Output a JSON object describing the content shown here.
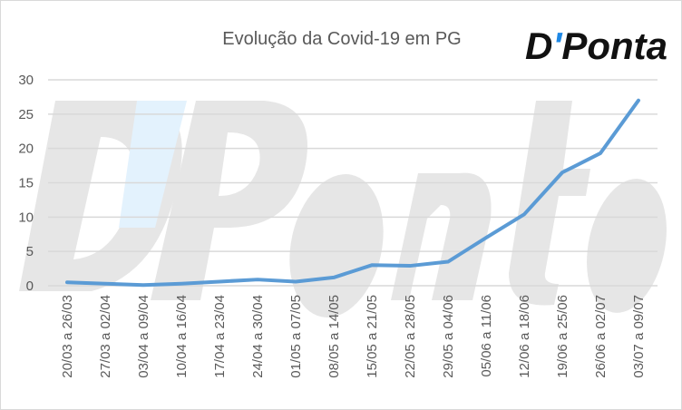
{
  "chart_data": {
    "type": "line",
    "title": "Evolução da Covid-19 em PG",
    "xlabel": "",
    "ylabel": "",
    "categories": [
      "20/03 a 26/03",
      "27/03 a 02/04",
      "03/04 a 09/04",
      "10/04 a 16/04",
      "17/04 a 23/04",
      "24/04 a 30/04",
      "01/05 a 07/05",
      "08/05 a 14/05",
      "15/05 a 21/05",
      "22/05 a 28/05",
      "29/05 a 04/06",
      "05/06 a 11/06",
      "12/06 a 18/06",
      "19/06 a 25/06",
      "26/06 a 02/07",
      "03/07 a 09/07"
    ],
    "series": [
      {
        "values": [
          0.5,
          0.3,
          0.1,
          0.3,
          0.6,
          0.9,
          0.6,
          1.2,
          3.0,
          2.9,
          3.5,
          7.0,
          10.4,
          16.5,
          19.3,
          27.0
        ],
        "color": "#5b9bd5"
      }
    ],
    "ylim": [
      0,
      30
    ],
    "yticks": [
      0,
      5,
      10,
      15,
      20,
      25,
      30
    ],
    "grid": true,
    "legend": "none"
  },
  "logo": {
    "text": "D'Ponta",
    "accent": "#1e88e5"
  },
  "watermark": {
    "text": "D'Ponta"
  }
}
